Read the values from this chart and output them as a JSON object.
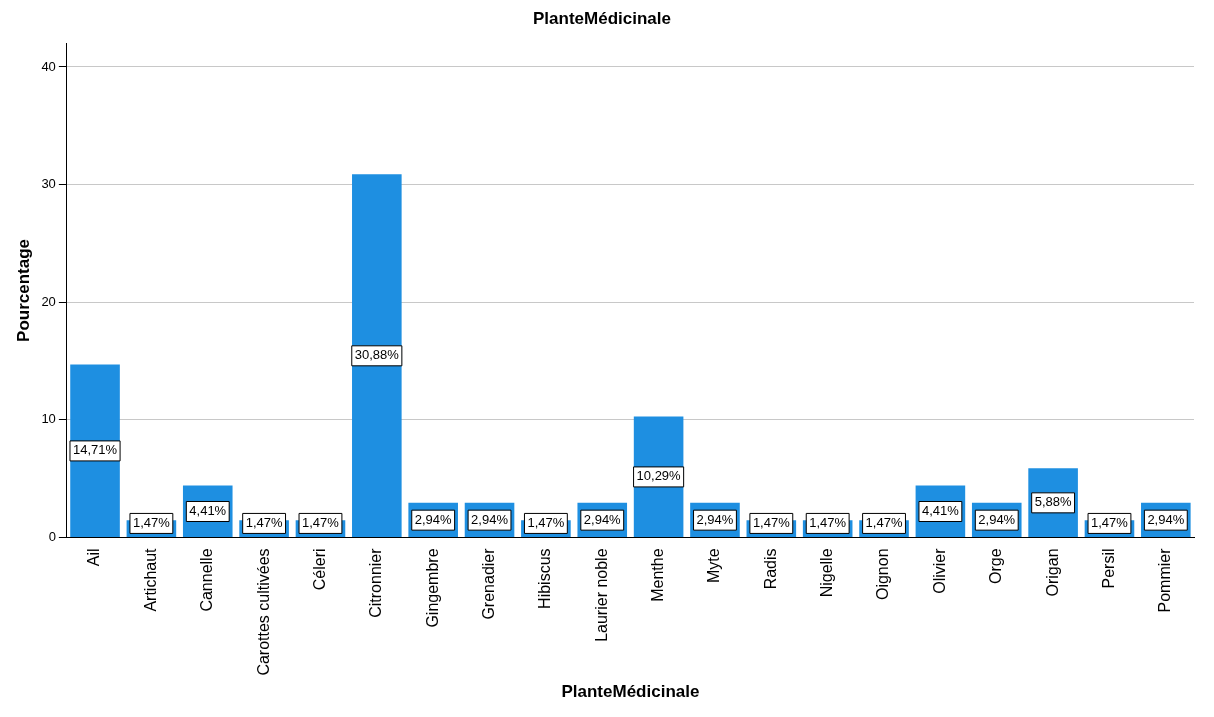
{
  "chart_data": {
    "type": "bar",
    "title": "PlanteMédicinale",
    "xlabel": "PlanteMédicinale",
    "ylabel": "Pourcentage",
    "categories": [
      "Ail",
      "Artichaut",
      "Cannelle",
      "Carottes cultivées",
      "Céleri",
      "Citronnier",
      "Gingembre",
      "Grenadier",
      "Hibiscus",
      "Laurier noble",
      "Menthe",
      "Myte",
      "Radis",
      "Nigelle",
      "Oignon",
      "Olivier",
      "Orge",
      "Origan",
      "Persil",
      "Pommier"
    ],
    "values": [
      14.71,
      1.47,
      4.41,
      1.47,
      1.47,
      30.88,
      2.94,
      2.94,
      1.47,
      2.94,
      10.29,
      2.94,
      1.47,
      1.47,
      1.47,
      4.41,
      2.94,
      5.88,
      1.47,
      2.94
    ],
    "value_labels": [
      "14,71%",
      "1,47%",
      "4,41%",
      "1,47%",
      "1,47%",
      "30,88%",
      "2,94%",
      "2,94%",
      "1,47%",
      "2,94%",
      "10,29%",
      "2,94%",
      "1,47%",
      "1,47%",
      "1,47%",
      "4,41%",
      "2,94%",
      "5,88%",
      "1,47%",
      "2,94%"
    ],
    "color": "#1e8fe1",
    "ylim": [
      0,
      42
    ],
    "yticks": [
      0,
      10,
      20,
      30,
      40
    ],
    "grid": "y"
  }
}
